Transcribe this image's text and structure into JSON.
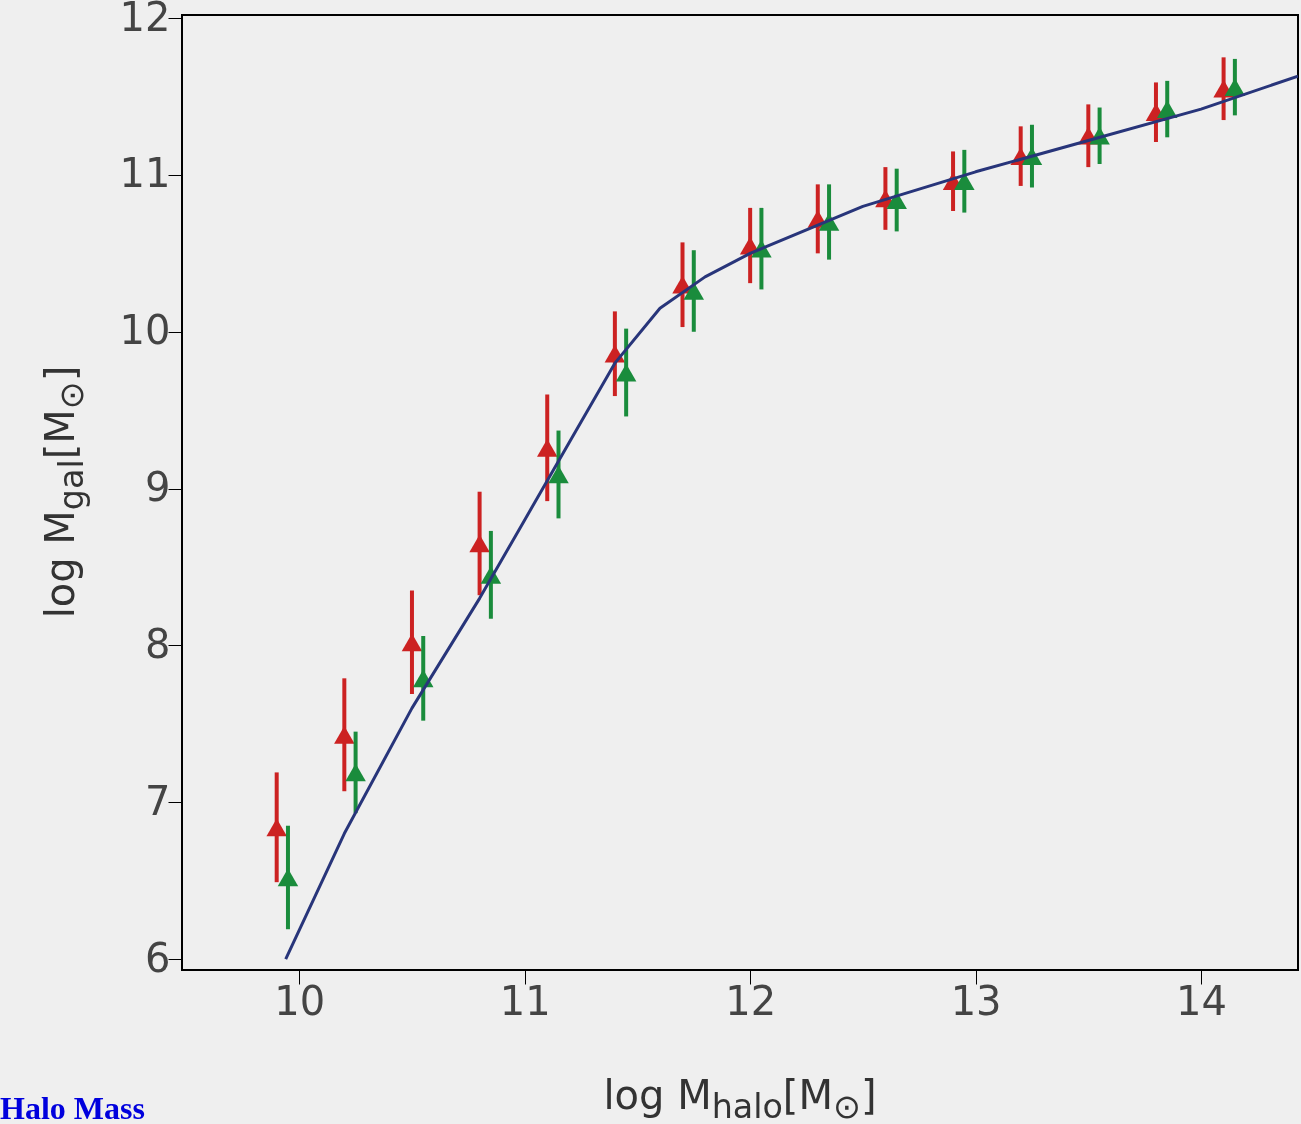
{
  "chart_data": {
    "type": "scatter",
    "xlabel": "log  M$_{halo}$[M$_{⊙}$]",
    "ylabel": "log  M$_{gal}$[M$_{⊙}$]",
    "xlim": [
      9.48,
      14.43
    ],
    "ylim": [
      5.93,
      12.02
    ],
    "xticks": [
      10,
      11,
      12,
      13,
      14
    ],
    "yticks": [
      6,
      7,
      8,
      9,
      10,
      11,
      12
    ],
    "grid": false,
    "marker": "triangle",
    "annotations": [
      "Halo Mass"
    ],
    "series": [
      {
        "color": "#cc2222",
        "x": [
          9.9,
          10.2,
          10.5,
          10.8,
          11.1,
          11.4,
          11.7,
          12.0,
          12.3,
          12.6,
          12.9,
          13.2,
          13.5,
          13.8,
          14.1
        ],
        "values": [
          6.84,
          7.43,
          8.02,
          8.65,
          9.26,
          9.86,
          10.3,
          10.55,
          10.72,
          10.85,
          10.96,
          11.12,
          11.25,
          11.4,
          11.55
        ],
        "errors": [
          0.35,
          0.36,
          0.33,
          0.33,
          0.34,
          0.27,
          0.27,
          0.24,
          0.22,
          0.2,
          0.19,
          0.19,
          0.2,
          0.19,
          0.2
        ]
      },
      {
        "color": "#1a8c3c",
        "x": [
          9.95,
          10.25,
          10.55,
          10.85,
          11.15,
          11.45,
          11.75,
          12.05,
          12.35,
          12.65,
          12.95,
          13.25,
          13.55,
          13.85,
          14.15
        ],
        "values": [
          6.52,
          7.19,
          7.79,
          8.45,
          9.09,
          9.74,
          10.26,
          10.53,
          10.7,
          10.84,
          10.96,
          11.12,
          11.25,
          11.42,
          11.56
        ],
        "errors": [
          0.33,
          0.26,
          0.27,
          0.28,
          0.28,
          0.28,
          0.26,
          0.26,
          0.24,
          0.2,
          0.2,
          0.2,
          0.18,
          0.18,
          0.18
        ]
      },
      {
        "type": "line",
        "color": "#28357a",
        "line_style": "solid",
        "marker": "none",
        "x": [
          9.94,
          10.2,
          10.5,
          10.8,
          11.0,
          11.2,
          11.4,
          11.6,
          11.8,
          12.0,
          12.5,
          13.0,
          13.5,
          14.0,
          14.43
        ],
        "values": [
          6.0,
          6.8,
          7.6,
          8.3,
          8.8,
          9.3,
          9.8,
          10.15,
          10.35,
          10.5,
          10.8,
          11.02,
          11.22,
          11.42,
          11.63
        ]
      }
    ]
  }
}
